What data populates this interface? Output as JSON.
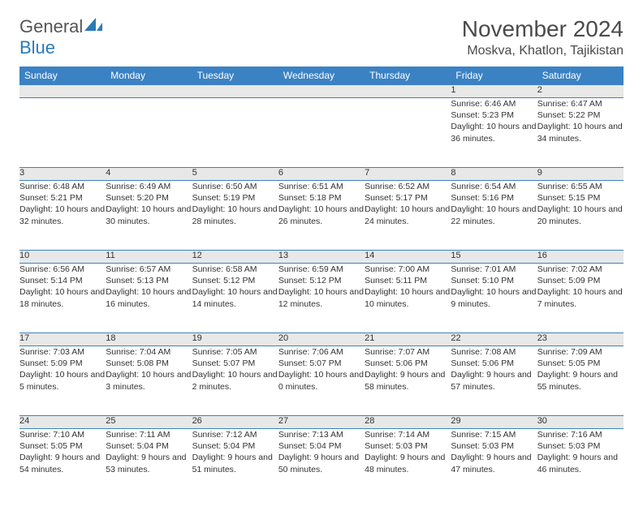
{
  "brand": {
    "word1": "General",
    "word2": "Blue",
    "color_gray": "#6a6a6a",
    "color_blue": "#2a7ab9"
  },
  "title": "November 2024",
  "location": "Moskva, Khatlon, Tajikistan",
  "header_bg": "#3b82c4",
  "header_fg": "#ffffff",
  "daynum_bg": "#e8e8e8",
  "border_color": "#3b82c4",
  "text_color": "#333333",
  "daysOfWeek": [
    "Sunday",
    "Monday",
    "Tuesday",
    "Wednesday",
    "Thursday",
    "Friday",
    "Saturday"
  ],
  "weeks": [
    {
      "nums": [
        "",
        "",
        "",
        "",
        "",
        "1",
        "2"
      ],
      "cells": [
        null,
        null,
        null,
        null,
        null,
        {
          "sunrise": "Sunrise: 6:46 AM",
          "sunset": "Sunset: 5:23 PM",
          "daylight": "Daylight: 10 hours and 36 minutes."
        },
        {
          "sunrise": "Sunrise: 6:47 AM",
          "sunset": "Sunset: 5:22 PM",
          "daylight": "Daylight: 10 hours and 34 minutes."
        }
      ]
    },
    {
      "nums": [
        "3",
        "4",
        "5",
        "6",
        "7",
        "8",
        "9"
      ],
      "cells": [
        {
          "sunrise": "Sunrise: 6:48 AM",
          "sunset": "Sunset: 5:21 PM",
          "daylight": "Daylight: 10 hours and 32 minutes."
        },
        {
          "sunrise": "Sunrise: 6:49 AM",
          "sunset": "Sunset: 5:20 PM",
          "daylight": "Daylight: 10 hours and 30 minutes."
        },
        {
          "sunrise": "Sunrise: 6:50 AM",
          "sunset": "Sunset: 5:19 PM",
          "daylight": "Daylight: 10 hours and 28 minutes."
        },
        {
          "sunrise": "Sunrise: 6:51 AM",
          "sunset": "Sunset: 5:18 PM",
          "daylight": "Daylight: 10 hours and 26 minutes."
        },
        {
          "sunrise": "Sunrise: 6:52 AM",
          "sunset": "Sunset: 5:17 PM",
          "daylight": "Daylight: 10 hours and 24 minutes."
        },
        {
          "sunrise": "Sunrise: 6:54 AM",
          "sunset": "Sunset: 5:16 PM",
          "daylight": "Daylight: 10 hours and 22 minutes."
        },
        {
          "sunrise": "Sunrise: 6:55 AM",
          "sunset": "Sunset: 5:15 PM",
          "daylight": "Daylight: 10 hours and 20 minutes."
        }
      ]
    },
    {
      "nums": [
        "10",
        "11",
        "12",
        "13",
        "14",
        "15",
        "16"
      ],
      "cells": [
        {
          "sunrise": "Sunrise: 6:56 AM",
          "sunset": "Sunset: 5:14 PM",
          "daylight": "Daylight: 10 hours and 18 minutes."
        },
        {
          "sunrise": "Sunrise: 6:57 AM",
          "sunset": "Sunset: 5:13 PM",
          "daylight": "Daylight: 10 hours and 16 minutes."
        },
        {
          "sunrise": "Sunrise: 6:58 AM",
          "sunset": "Sunset: 5:12 PM",
          "daylight": "Daylight: 10 hours and 14 minutes."
        },
        {
          "sunrise": "Sunrise: 6:59 AM",
          "sunset": "Sunset: 5:12 PM",
          "daylight": "Daylight: 10 hours and 12 minutes."
        },
        {
          "sunrise": "Sunrise: 7:00 AM",
          "sunset": "Sunset: 5:11 PM",
          "daylight": "Daylight: 10 hours and 10 minutes."
        },
        {
          "sunrise": "Sunrise: 7:01 AM",
          "sunset": "Sunset: 5:10 PM",
          "daylight": "Daylight: 10 hours and 9 minutes."
        },
        {
          "sunrise": "Sunrise: 7:02 AM",
          "sunset": "Sunset: 5:09 PM",
          "daylight": "Daylight: 10 hours and 7 minutes."
        }
      ]
    },
    {
      "nums": [
        "17",
        "18",
        "19",
        "20",
        "21",
        "22",
        "23"
      ],
      "cells": [
        {
          "sunrise": "Sunrise: 7:03 AM",
          "sunset": "Sunset: 5:09 PM",
          "daylight": "Daylight: 10 hours and 5 minutes."
        },
        {
          "sunrise": "Sunrise: 7:04 AM",
          "sunset": "Sunset: 5:08 PM",
          "daylight": "Daylight: 10 hours and 3 minutes."
        },
        {
          "sunrise": "Sunrise: 7:05 AM",
          "sunset": "Sunset: 5:07 PM",
          "daylight": "Daylight: 10 hours and 2 minutes."
        },
        {
          "sunrise": "Sunrise: 7:06 AM",
          "sunset": "Sunset: 5:07 PM",
          "daylight": "Daylight: 10 hours and 0 minutes."
        },
        {
          "sunrise": "Sunrise: 7:07 AM",
          "sunset": "Sunset: 5:06 PM",
          "daylight": "Daylight: 9 hours and 58 minutes."
        },
        {
          "sunrise": "Sunrise: 7:08 AM",
          "sunset": "Sunset: 5:06 PM",
          "daylight": "Daylight: 9 hours and 57 minutes."
        },
        {
          "sunrise": "Sunrise: 7:09 AM",
          "sunset": "Sunset: 5:05 PM",
          "daylight": "Daylight: 9 hours and 55 minutes."
        }
      ]
    },
    {
      "nums": [
        "24",
        "25",
        "26",
        "27",
        "28",
        "29",
        "30"
      ],
      "cells": [
        {
          "sunrise": "Sunrise: 7:10 AM",
          "sunset": "Sunset: 5:05 PM",
          "daylight": "Daylight: 9 hours and 54 minutes."
        },
        {
          "sunrise": "Sunrise: 7:11 AM",
          "sunset": "Sunset: 5:04 PM",
          "daylight": "Daylight: 9 hours and 53 minutes."
        },
        {
          "sunrise": "Sunrise: 7:12 AM",
          "sunset": "Sunset: 5:04 PM",
          "daylight": "Daylight: 9 hours and 51 minutes."
        },
        {
          "sunrise": "Sunrise: 7:13 AM",
          "sunset": "Sunset: 5:04 PM",
          "daylight": "Daylight: 9 hours and 50 minutes."
        },
        {
          "sunrise": "Sunrise: 7:14 AM",
          "sunset": "Sunset: 5:03 PM",
          "daylight": "Daylight: 9 hours and 48 minutes."
        },
        {
          "sunrise": "Sunrise: 7:15 AM",
          "sunset": "Sunset: 5:03 PM",
          "daylight": "Daylight: 9 hours and 47 minutes."
        },
        {
          "sunrise": "Sunrise: 7:16 AM",
          "sunset": "Sunset: 5:03 PM",
          "daylight": "Daylight: 9 hours and 46 minutes."
        }
      ]
    }
  ]
}
